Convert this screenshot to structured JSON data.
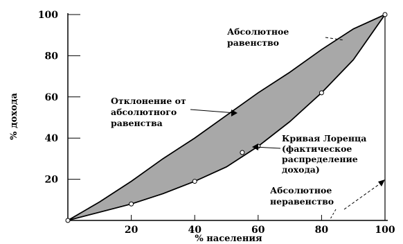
{
  "chart_data": {
    "type": "area",
    "xlabel": "% населения",
    "ylabel": "% дохода",
    "xlim": [
      0,
      100
    ],
    "ylim": [
      0,
      100
    ],
    "x_ticks": [
      "20",
      "40",
      "60",
      "80",
      "100"
    ],
    "y_ticks": [
      "20",
      "40",
      "60",
      "80",
      "100"
    ],
    "grid": false,
    "series": [
      {
        "name": "Абсолютное равенство",
        "points": [
          [
            0,
            0
          ],
          [
            10,
            9
          ],
          [
            20,
            19
          ],
          [
            30,
            30
          ],
          [
            40,
            40
          ],
          [
            50,
            51
          ],
          [
            60,
            62
          ],
          [
            70,
            72
          ],
          [
            80,
            83
          ],
          [
            90,
            93
          ],
          [
            100,
            100
          ]
        ]
      },
      {
        "name": "Кривая Лоренца",
        "points": [
          [
            0,
            0
          ],
          [
            10,
            4
          ],
          [
            20,
            8
          ],
          [
            30,
            13
          ],
          [
            40,
            19
          ],
          [
            50,
            26
          ],
          [
            60,
            36
          ],
          [
            70,
            48
          ],
          [
            80,
            62
          ],
          [
            90,
            78
          ],
          [
            100,
            100
          ]
        ]
      }
    ],
    "fill_color": "#a8a8a8",
    "annotations": {
      "equality": [
        "Абсолютное",
        "равенство"
      ],
      "deviation": [
        "Отклонение от",
        "абсолютного",
        "равенства"
      ],
      "lorenz": [
        "Кривая Лоренца",
        "(фактическое",
        "распределение",
        "дохода)"
      ],
      "inequality": [
        "Абсолютное",
        "неравенство"
      ]
    }
  }
}
